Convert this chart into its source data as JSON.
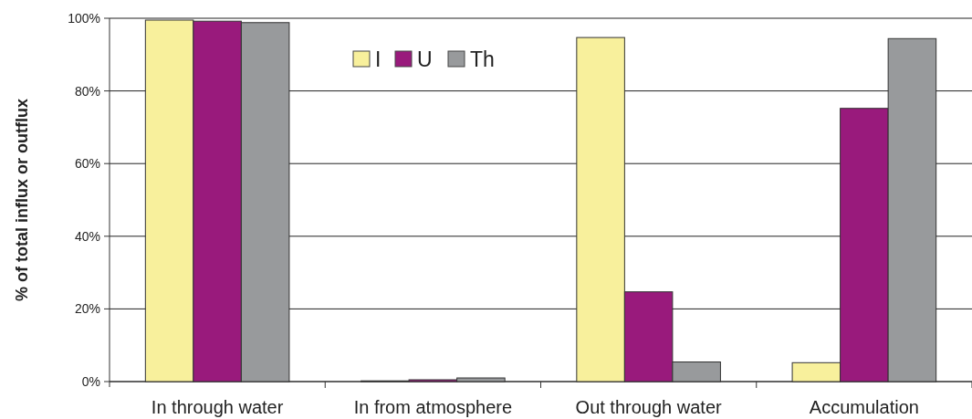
{
  "chart_data": {
    "type": "bar",
    "ylabel": "% of total influx or outflux",
    "categories": [
      "In through water",
      "In from atmosphere",
      "Out through water",
      "Accumulation"
    ],
    "series": [
      {
        "name": "I",
        "color": "#f8f09c",
        "values": [
          99.5,
          0.2,
          94.7,
          5.2
        ]
      },
      {
        "name": "U",
        "color": "#991a7c",
        "values": [
          99.2,
          0.5,
          24.7,
          75.2
        ]
      },
      {
        "name": "Th",
        "color": "#989a9c",
        "values": [
          98.8,
          1.0,
          5.4,
          94.4
        ]
      }
    ],
    "ylim": [
      0,
      100
    ],
    "yticks": [
      {
        "value": 0,
        "label": "0%"
      },
      {
        "value": 20,
        "label": "20%"
      },
      {
        "value": 40,
        "label": "40%"
      },
      {
        "value": 60,
        "label": "60%"
      },
      {
        "value": 80,
        "label": "80%"
      },
      {
        "value": 100,
        "label": "100%"
      }
    ],
    "grid": "y",
    "legend": "top"
  }
}
